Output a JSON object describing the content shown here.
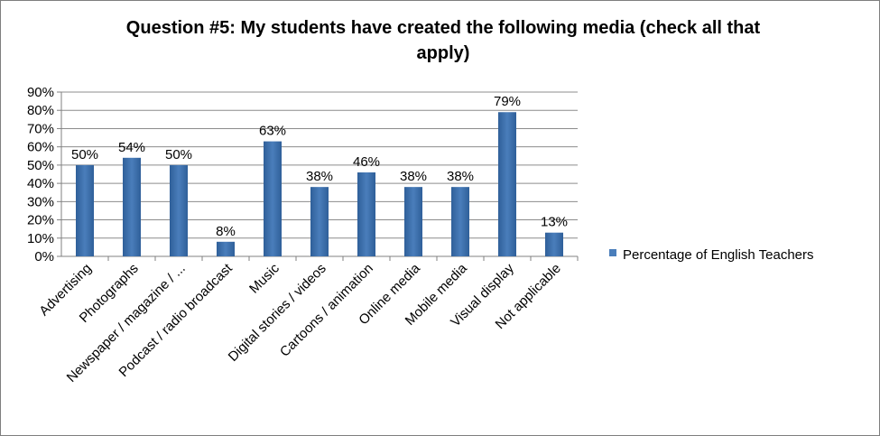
{
  "chart_data": {
    "type": "bar",
    "title": "Question #5: My students have created the following media (check all that apply)",
    "categories": [
      "Advertising",
      "Photographs",
      "Newspaper / magazine / ...",
      "Podcast / radio broadcast",
      "Music",
      "Digital stories / videos",
      "Cartoons / animation",
      "Online media",
      "Mobile media",
      "Visual display",
      "Not applicable"
    ],
    "series": [
      {
        "name": "Percentage of English Teachers",
        "values": [
          50,
          54,
          50,
          8,
          63,
          38,
          46,
          38,
          38,
          79,
          13
        ],
        "value_labels": [
          "50%",
          "54%",
          "50%",
          "8%",
          "63%",
          "38%",
          "46%",
          "38%",
          "38%",
          "79%",
          "13%"
        ]
      }
    ],
    "ylim": [
      0,
      90
    ],
    "y_ticks": [
      "0%",
      "10%",
      "20%",
      "30%",
      "40%",
      "50%",
      "60%",
      "70%",
      "80%",
      "90%"
    ],
    "grid": true,
    "legend": "right",
    "colors": {
      "bar": "#4a7ebb",
      "bar_dark": "#2f5f99",
      "grid": "#8c8c8c",
      "axis": "#808080"
    }
  }
}
